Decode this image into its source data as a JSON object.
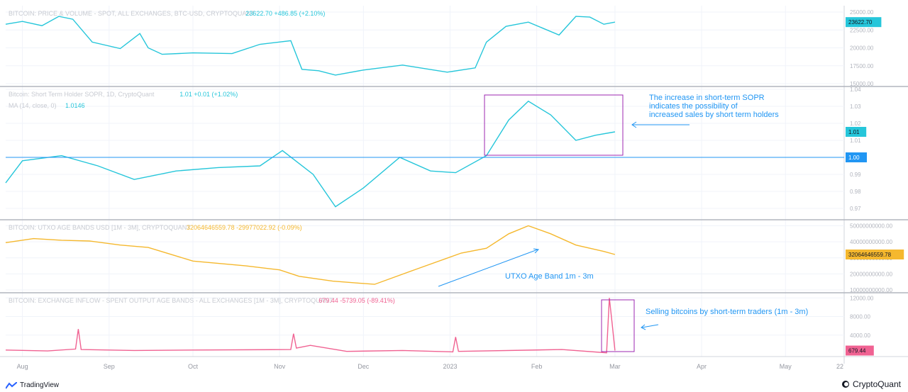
{
  "panes": [
    {
      "id": "price",
      "title": "BITCOIN: PRICE & VOLUME - SPOT, ALL EXCHANGES, BTC-USD, CRYPTOQUANT",
      "value_text": "23622.70  +486.85 (+2.10%)",
      "color": "#26c6da",
      "ticks": [
        "25000.00",
        "22500.00",
        "20000.00",
        "17500.00",
        "15000.00"
      ],
      "current_label": "23622.70"
    },
    {
      "id": "sopr",
      "title": "Bitcoin: Short Term Holder SOPR, 1D, CryptoQuant",
      "value_text": "1.01  +0.01 (+1.02%)",
      "title2": "MA (14, close, 0)",
      "value_text2": "1.0146",
      "color": "#26c6da",
      "ticks": [
        "1.04",
        "1.03",
        "1.02",
        "1.01",
        "1.00",
        "0.99",
        "0.98",
        "0.97"
      ],
      "current_label": "1.01",
      "baseline_label": "1.00"
    },
    {
      "id": "utxo",
      "title": "BITCOIN: UTXO AGE BANDS USD [1M - 3M], CRYPTOQUANT",
      "value_text": "32064646559.78  -29977022.92 (-0.09%)",
      "color": "#f5b82e",
      "ticks": [
        "50000000000.00",
        "40000000000.00",
        "30000000000.00",
        "20000000000.00",
        "10000000000.00"
      ],
      "current_label": "32064646559.78"
    },
    {
      "id": "inflow",
      "title": "BITCOIN: EXCHANGE INFLOW - SPENT OUTPUT AGE BANDS - ALL EXCHANGES [1M - 3M], CRYPTOQUANT",
      "value_text": "679.44  -5739.05 (-89.41%)",
      "color": "#f06292",
      "ticks": [
        "12000.00",
        "8000.00",
        "4000.00"
      ],
      "current_label": "679.44"
    }
  ],
  "x_axis": [
    "Aug",
    "Sep",
    "Oct",
    "Nov",
    "Dec",
    "2023",
    "Feb",
    "Mar",
    "Apr",
    "May",
    "22"
  ],
  "annotations": {
    "sopr_text": [
      "The increase in  short-term SOPR",
      "indicates the possibility of",
      " increased sales by short term holders"
    ],
    "utxo_text": "UTXO Age Band 1m - 3m",
    "inflow_text": "Selling bitcoins by short-term traders (1m - 3m)"
  },
  "footer": {
    "left": "TradingView",
    "right": "CryptoQuant"
  },
  "chart_data": [
    {
      "type": "line",
      "title": "BITCOIN: PRICE & VOLUME - SPOT, ALL EXCHANGES, BTC-USD, CRYPTOQUANT",
      "x": [
        "2022-07-26",
        "2022-08-01",
        "2022-08-08",
        "2022-08-14",
        "2022-08-19",
        "2022-08-26",
        "2022-09-05",
        "2022-09-12",
        "2022-09-15",
        "2022-09-20",
        "2022-10-01",
        "2022-10-15",
        "2022-10-25",
        "2022-11-05",
        "2022-11-09",
        "2022-11-15",
        "2022-11-21",
        "2022-12-01",
        "2022-12-15",
        "2022-12-31",
        "2023-01-10",
        "2023-01-14",
        "2023-01-21",
        "2023-01-29",
        "2023-02-09",
        "2023-02-15",
        "2023-02-20",
        "2023-02-25",
        "2023-03-01"
      ],
      "y": [
        23300,
        23700,
        23100,
        24400,
        24000,
        20800,
        19900,
        22000,
        20000,
        19100,
        19300,
        19200,
        20500,
        21000,
        17000,
        16800,
        16200,
        16900,
        17600,
        16600,
        17200,
        20800,
        23000,
        23600,
        21800,
        24400,
        24300,
        23300,
        23600
      ],
      "ylim": [
        15000,
        25500
      ]
    },
    {
      "type": "line",
      "title": "Bitcoin: Short Term Holder SOPR, 1D, CryptoQuant",
      "x": [
        "2022-07-26",
        "2022-08-01",
        "2022-08-15",
        "2022-08-28",
        "2022-09-10",
        "2022-09-25",
        "2022-10-10",
        "2022-10-25",
        "2022-11-02",
        "2022-11-13",
        "2022-11-21",
        "2022-12-01",
        "2022-12-14",
        "2022-12-25",
        "2023-01-03",
        "2023-01-14",
        "2023-01-22",
        "2023-01-29",
        "2023-02-06",
        "2023-02-15",
        "2023-02-22",
        "2023-03-01"
      ],
      "y": [
        0.985,
        0.998,
        1.001,
        0.995,
        0.987,
        0.992,
        0.994,
        0.995,
        1.004,
        0.99,
        0.971,
        0.982,
        1.0,
        0.992,
        0.991,
        1.001,
        1.022,
        1.033,
        1.025,
        1.01,
        1.013,
        1.015
      ],
      "ylim": [
        0.965,
        1.04
      ]
    },
    {
      "type": "line",
      "title": "BITCOIN: UTXO AGE BANDS USD [1M - 3M], CRYPTOQUANT",
      "x": [
        "2022-07-26",
        "2022-08-05",
        "2022-08-15",
        "2022-08-25",
        "2022-09-05",
        "2022-09-15",
        "2022-10-01",
        "2022-10-20",
        "2022-11-01",
        "2022-11-08",
        "2022-11-20",
        "2022-12-05",
        "2022-12-20",
        "2023-01-05",
        "2023-01-14",
        "2023-01-22",
        "2023-01-29",
        "2023-02-06",
        "2023-02-15",
        "2023-02-25",
        "2023-03-01"
      ],
      "y": [
        39500,
        42000,
        41000,
        40500,
        38000,
        36500,
        28000,
        25000,
        22500,
        18500,
        15500,
        13500,
        23000,
        33000,
        36000,
        45000,
        50000,
        45000,
        38000,
        34000,
        32100
      ],
      "ylim": [
        10000,
        52000
      ]
    },
    {
      "type": "line",
      "title": "BITCOIN: EXCHANGE INFLOW - SPENT OUTPUT AGE BANDS - ALL EXCHANGES [1M - 3M], CRYPTOQUANT",
      "x": [
        "2022-07-26",
        "2022-08-10",
        "2022-08-20",
        "2022-08-21",
        "2022-08-22",
        "2022-09-10",
        "2022-10-01",
        "2022-11-05",
        "2022-11-06",
        "2022-11-07",
        "2022-11-12",
        "2022-11-25",
        "2022-12-15",
        "2023-01-02",
        "2023-01-03",
        "2023-01-04",
        "2023-02-10",
        "2023-02-26",
        "2023-02-27",
        "2023-02-28",
        "2023-03-01"
      ],
      "y": [
        800,
        600,
        1000,
        5300,
        900,
        700,
        800,
        900,
        4300,
        1200,
        1800,
        500,
        700,
        400,
        3600,
        500,
        900,
        200,
        12000,
        6400,
        679
      ],
      "ylim": [
        0,
        12500
      ]
    }
  ]
}
